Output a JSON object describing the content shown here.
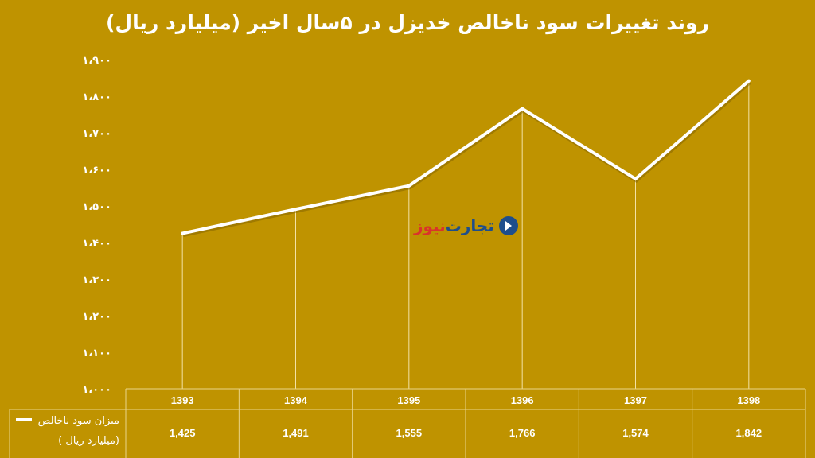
{
  "title": "روند تغییرات سود ناخالص خدیزل در ۵سال اخیر (میلیارد ریال)",
  "watermark": {
    "part1": "تجارت",
    "part2": "نیوز"
  },
  "chart_data": {
    "type": "line",
    "categories": [
      "1393",
      "1394",
      "1395",
      "1396",
      "1397",
      "1398"
    ],
    "series": [
      {
        "name": "میزان سود ناخالص ( میلیارد ریال)",
        "name_line1": "میزان سود ناخالص",
        "name_line2": "( میلیارد ریال)",
        "values": [
          1425,
          1491,
          1555,
          1766,
          1574,
          1842
        ],
        "value_labels": [
          "1,425",
          "1,491",
          "1,555",
          "1,766",
          "1,574",
          "1,842"
        ]
      }
    ],
    "ylim": [
      1000,
      1900
    ],
    "yticks": [
      1000,
      1100,
      1200,
      1300,
      1400,
      1500,
      1600,
      1700,
      1800,
      1900
    ],
    "ytick_labels": [
      "۱،۰۰۰",
      "۱،۱۰۰",
      "۱،۲۰۰",
      "۱،۳۰۰",
      "۱،۴۰۰",
      "۱،۵۰۰",
      "۱،۶۰۰",
      "۱،۷۰۰",
      "۱،۸۰۰",
      "۱،۹۰۰"
    ],
    "line_color": "#FFFFFF",
    "background": "#BF9300",
    "data_table": true,
    "drop_lines": true,
    "grid": false
  }
}
